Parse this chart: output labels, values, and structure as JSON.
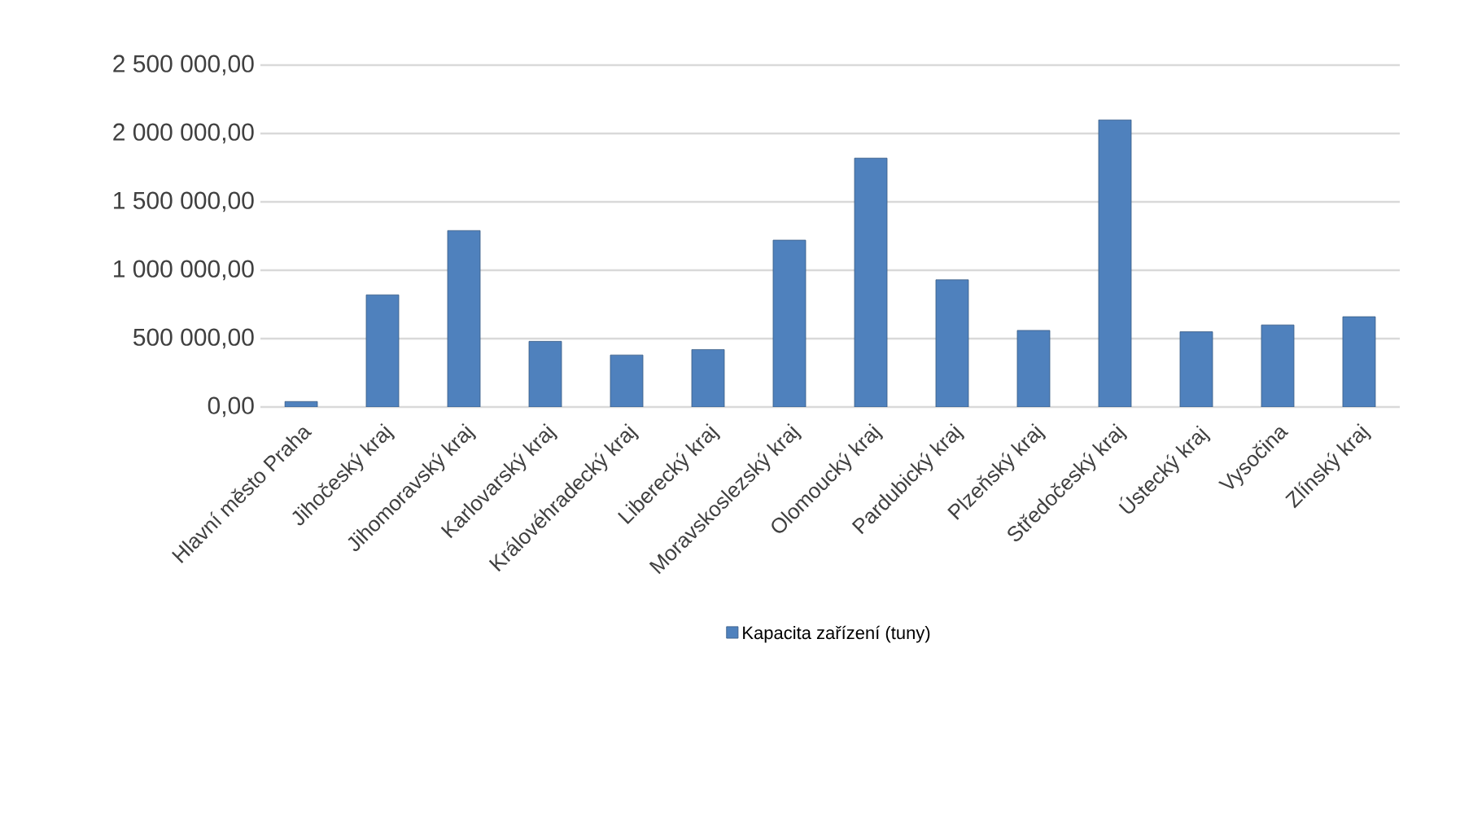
{
  "chart_data": {
    "type": "bar",
    "categories": [
      "Hlavní město Praha",
      "Jihočeský kraj",
      "Jihomoravský kraj",
      "Karlovarský kraj",
      "Královéhradecký kraj",
      "Liberecký kraj",
      "Moravskoslezský  kraj",
      "Olomoucký kraj",
      "Pardubický kraj",
      "Plzeňský kraj",
      "Středočeský kraj",
      "Ústecký kraj",
      "Vysočina",
      "Zlínský kraj"
    ],
    "series": [
      {
        "name": "Kapacita zařízení (tuny)",
        "color": "#4f81bd",
        "values": [
          40000,
          820000,
          1290000,
          480000,
          380000,
          420000,
          1220000,
          1820000,
          930000,
          560000,
          2100000,
          550000,
          600000,
          660000
        ]
      }
    ],
    "ylim": [
      0,
      2500000
    ],
    "yticks": [
      {
        "value": 0,
        "label": "0,00"
      },
      {
        "value": 500000,
        "label": "500 000,00"
      },
      {
        "value": 1000000,
        "label": "1 000 000,00"
      },
      {
        "value": 1500000,
        "label": "1 500 000,00"
      },
      {
        "value": 2000000,
        "label": "2 000 000,00"
      },
      {
        "value": 2500000,
        "label": "2 500 000,00"
      }
    ],
    "grid": "y",
    "legend": "bottom"
  }
}
